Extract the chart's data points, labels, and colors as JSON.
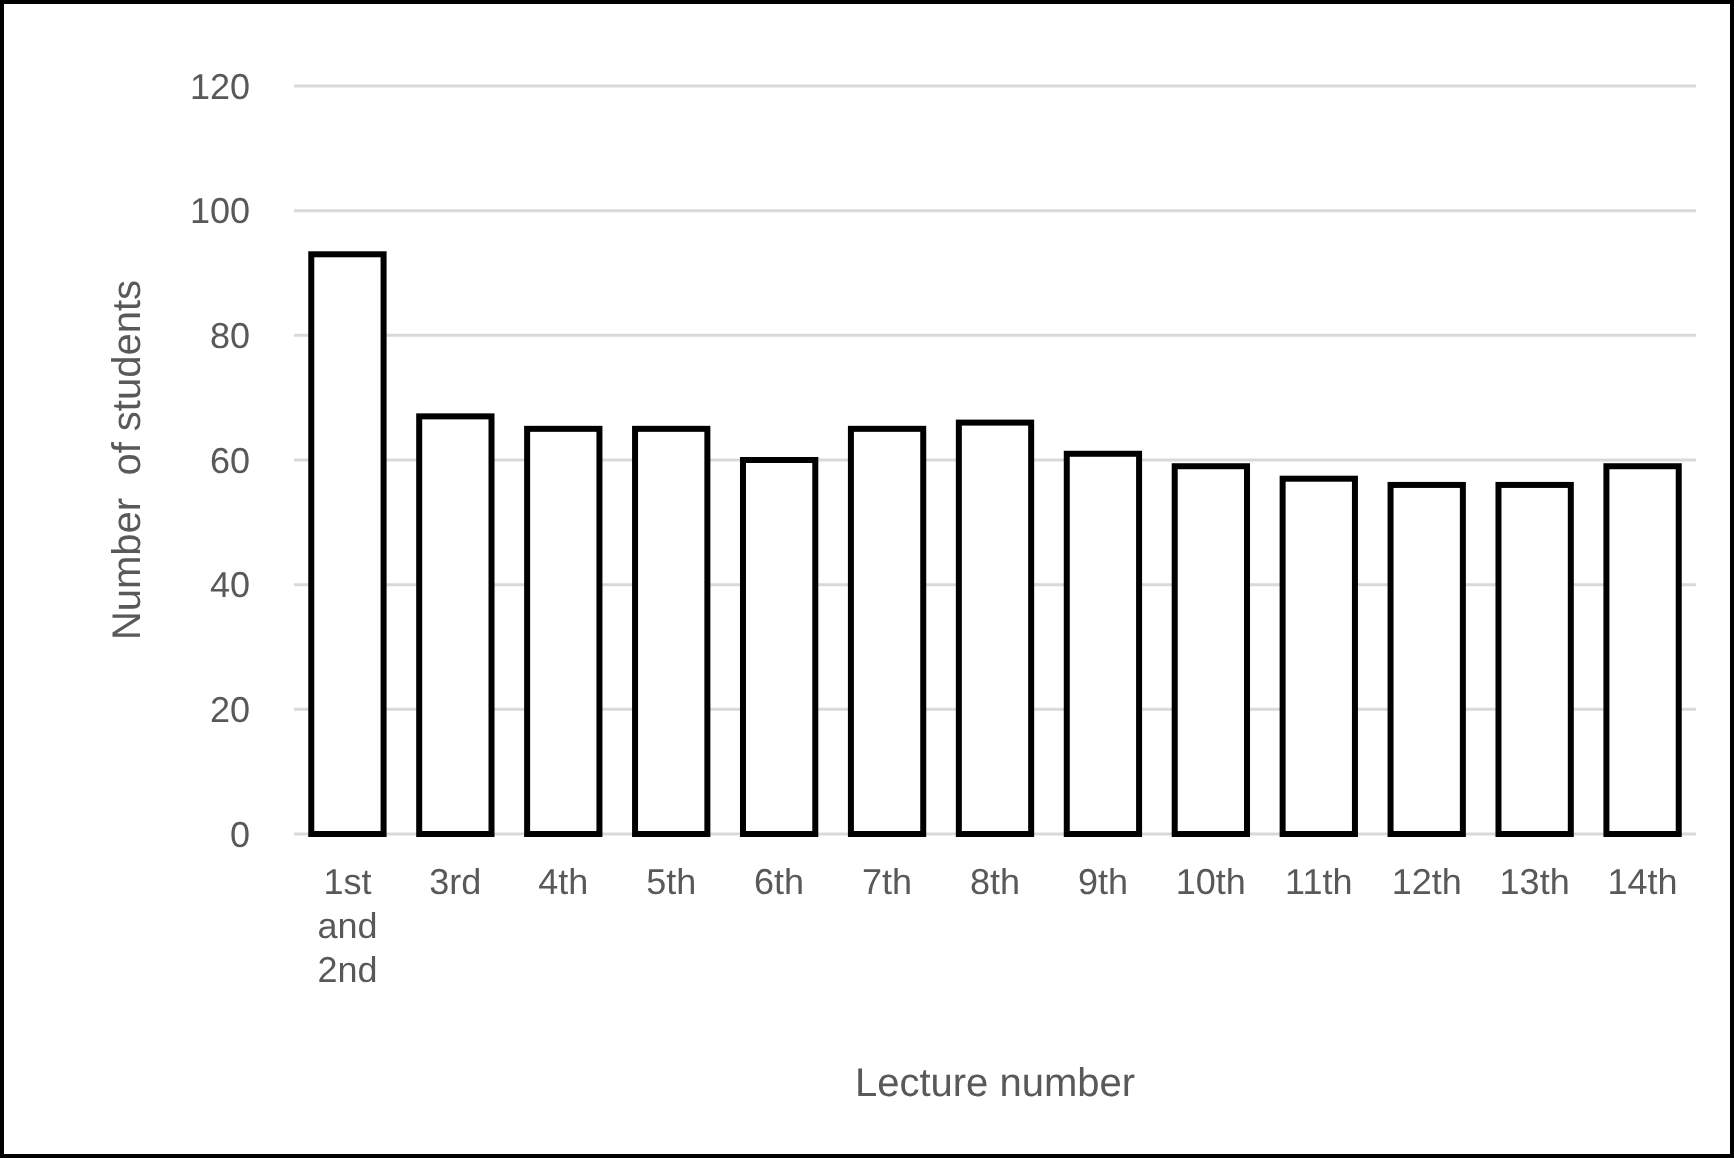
{
  "chart_data": {
    "type": "bar",
    "xlabel": "Lecture number",
    "ylabel": "Number  of students",
    "categories": [
      "1st and 2nd",
      "3rd",
      "4th",
      "5th",
      "6th",
      "7th",
      "8th",
      "9th",
      "10th",
      "11th",
      "12th",
      "13th",
      "14th"
    ],
    "values": [
      93,
      67,
      65,
      65,
      60,
      65,
      66,
      61,
      59,
      57,
      56,
      56,
      59
    ],
    "color": "#ffffff",
    "ylim": [
      0,
      120
    ],
    "yticks": [
      0,
      20,
      40,
      60,
      80,
      100,
      120
    ],
    "grid": "y"
  }
}
